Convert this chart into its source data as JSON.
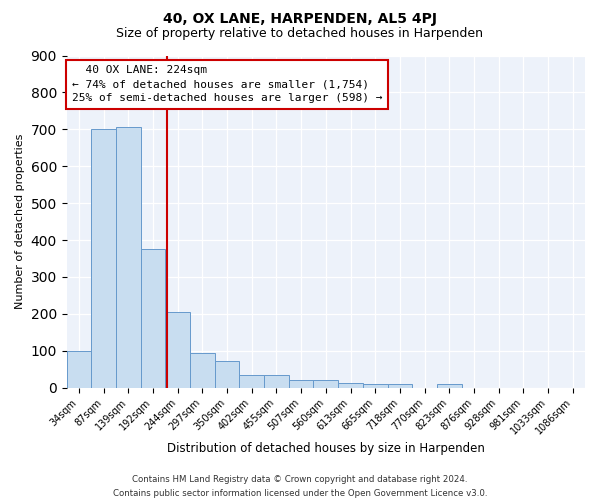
{
  "title": "40, OX LANE, HARPENDEN, AL5 4PJ",
  "subtitle": "Size of property relative to detached houses in Harpenden",
  "xlabel": "Distribution of detached houses by size in Harpenden",
  "ylabel": "Number of detached properties",
  "bar_labels": [
    "34sqm",
    "87sqm",
    "139sqm",
    "192sqm",
    "244sqm",
    "297sqm",
    "350sqm",
    "402sqm",
    "455sqm",
    "507sqm",
    "560sqm",
    "613sqm",
    "665sqm",
    "718sqm",
    "770sqm",
    "823sqm",
    "876sqm",
    "928sqm",
    "981sqm",
    "1033sqm",
    "1086sqm"
  ],
  "bar_values": [
    100,
    700,
    705,
    375,
    205,
    95,
    72,
    35,
    35,
    20,
    22,
    12,
    10,
    10,
    0,
    10,
    0,
    0,
    0,
    0,
    0
  ],
  "bar_color": "#c8ddf0",
  "bar_edge_color": "#6699cc",
  "vline_x": 3.55,
  "vline_color": "#cc0000",
  "annotation_text": "  40 OX LANE: 224sqm\n← 74% of detached houses are smaller (1,754)\n25% of semi-detached houses are larger (598) →",
  "annotation_box_color": "white",
  "annotation_box_edge_color": "#cc0000",
  "ylim": [
    0,
    900
  ],
  "yticks": [
    0,
    100,
    200,
    300,
    400,
    500,
    600,
    700,
    800,
    900
  ],
  "footer_line1": "Contains HM Land Registry data © Crown copyright and database right 2024.",
  "footer_line2": "Contains public sector information licensed under the Open Government Licence v3.0.",
  "bg_color": "#edf2fa",
  "fig_bg_color": "#ffffff",
  "grid_color": "#ffffff",
  "title_fontsize": 10,
  "subtitle_fontsize": 9
}
